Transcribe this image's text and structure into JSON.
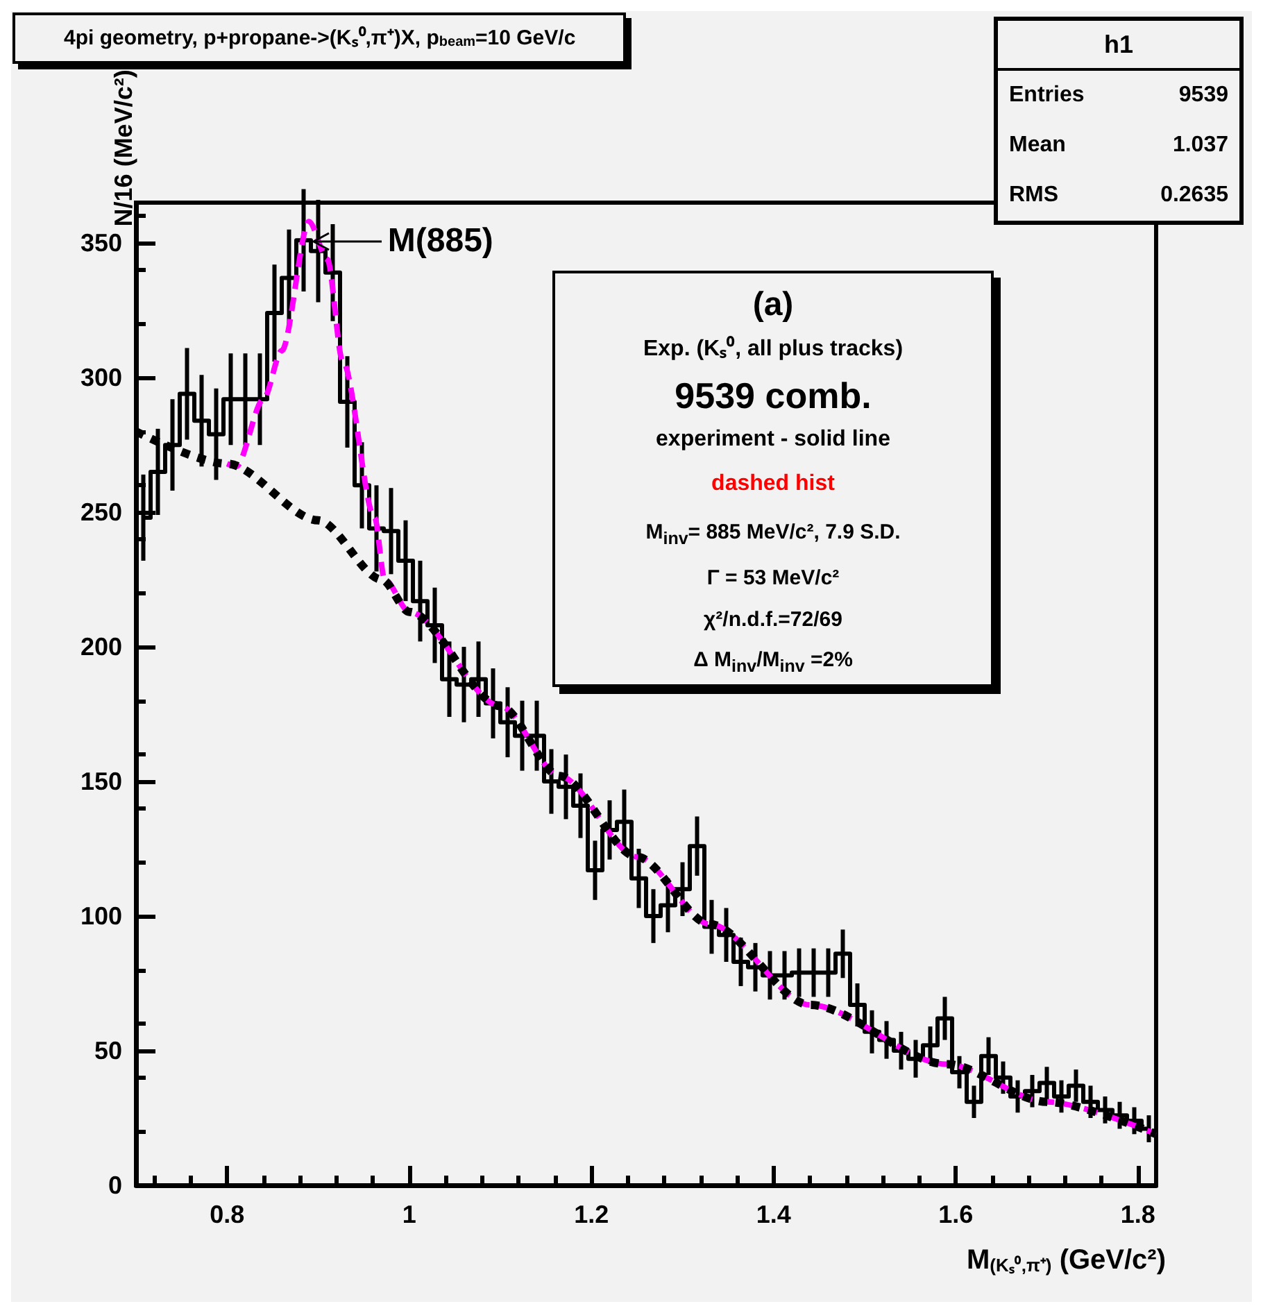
{
  "chart_data": {
    "type": "line",
    "title": "4pi geometry, p+propane->(Kₛ⁰,π⁺)X, p$_{beam}$=10 GeV/c",
    "xlabel": "M$_{(Kₛ⁰,π⁺)}$ (GeV/c²)",
    "ylabel": "N/16 (MeV/c²)",
    "series": [
      {
        "type": "step",
        "color": "#000000",
        "x": [
          0.708,
          0.724,
          0.74,
          0.756,
          0.772,
          0.788,
          0.804,
          0.82,
          0.836,
          0.852,
          0.868,
          0.884,
          0.9,
          0.916,
          0.932,
          0.948,
          0.964,
          0.98,
          0.996,
          1.012,
          1.028,
          1.044,
          1.06,
          1.076,
          1.092,
          1.108,
          1.124,
          1.14,
          1.156,
          1.172,
          1.188,
          1.204,
          1.22,
          1.236,
          1.252,
          1.268,
          1.284,
          1.3,
          1.316,
          1.332,
          1.348,
          1.364,
          1.38,
          1.396,
          1.412,
          1.428,
          1.444,
          1.46,
          1.476,
          1.492,
          1.508,
          1.524,
          1.54,
          1.556,
          1.572,
          1.588,
          1.604,
          1.62,
          1.636,
          1.652,
          1.668,
          1.684,
          1.7,
          1.716,
          1.732,
          1.748,
          1.764,
          1.78,
          1.796,
          1.812
        ],
        "values": [
          248,
          265,
          275,
          294,
          284,
          279,
          292,
          292,
          292,
          324,
          337,
          351,
          347,
          339,
          291,
          260,
          244,
          243,
          232,
          217,
          208,
          188,
          186,
          188,
          179,
          172,
          167,
          167,
          150,
          148,
          141,
          117,
          132,
          135,
          114,
          100,
          104,
          110,
          126,
          96,
          93,
          83,
          81,
          78,
          78,
          79,
          79,
          79,
          86,
          67,
          57,
          54,
          50,
          47,
          52,
          62,
          42,
          31,
          48,
          40,
          33,
          35,
          38,
          33,
          37,
          31,
          28,
          26,
          24,
          21
        ],
        "errors": [
          16,
          16,
          17,
          17,
          17,
          17,
          17,
          17,
          17,
          18,
          18,
          19,
          19,
          18,
          17,
          16,
          16,
          16,
          15,
          15,
          14,
          14,
          14,
          14,
          13,
          13,
          13,
          13,
          12,
          12,
          12,
          11,
          11,
          12,
          11,
          10,
          10,
          10,
          11,
          10,
          10,
          9,
          9,
          9,
          9,
          9,
          9,
          9,
          9,
          8,
          8,
          7,
          7,
          7,
          7,
          8,
          6,
          6,
          7,
          6,
          6,
          6,
          6,
          6,
          6,
          6,
          5,
          5,
          5,
          5
        ]
      },
      {
        "color": "#ff00ff",
        "line_style": "dashed",
        "x": [
          0.8,
          0.81,
          0.84,
          0.86,
          0.89,
          0.91,
          0.927,
          0.962,
          0.973,
          1.0,
          1.1,
          1.165,
          1.25,
          1.33,
          1.44,
          1.59,
          1.7,
          1.82
        ],
        "values": [
          268,
          267,
          292,
          310,
          358,
          344,
          306,
          248,
          225,
          213,
          178,
          152,
          122,
          97,
          67,
          45,
          31,
          19
        ]
      },
      {
        "color": "#000000",
        "line_style": "dotted",
        "x": [
          0.7,
          0.8,
          0.9,
          0.97,
          1.0,
          1.1,
          1.165,
          1.25,
          1.33,
          1.44,
          1.59,
          1.7,
          1.82
        ],
        "values": [
          280,
          268,
          247,
          225,
          213,
          178,
          152,
          122,
          97,
          67,
          45,
          31,
          19
        ]
      }
    ],
    "xlim": [
      0.7,
      1.82
    ],
    "xticks": [
      0.8,
      1,
      1.2,
      1.4,
      1.6,
      1.8
    ],
    "ylim": [
      0,
      365
    ],
    "yticks": [
      0,
      50,
      100,
      150,
      200,
      250,
      300,
      350
    ],
    "grid": false,
    "annotations": [
      "h1",
      "Entries",
      "9539",
      "Mean",
      "1.037",
      "RMS",
      "0.2635",
      "(a)",
      "Exp. (Kₛ⁰, all plus tracks)",
      "9539 comb.",
      "experiment - solid line",
      "dashed hist",
      "M$_{inv}$= 885 MeV/c², 7.9 S.D.",
      "Γ = 53 MeV/c²",
      "χ²/n.d.f.=72/69",
      "Δ M$_{inv}$/M$_{inv}$ =2%",
      {
        "text": "M(885)",
        "x": 0.885,
        "y": 357
      }
    ]
  }
}
